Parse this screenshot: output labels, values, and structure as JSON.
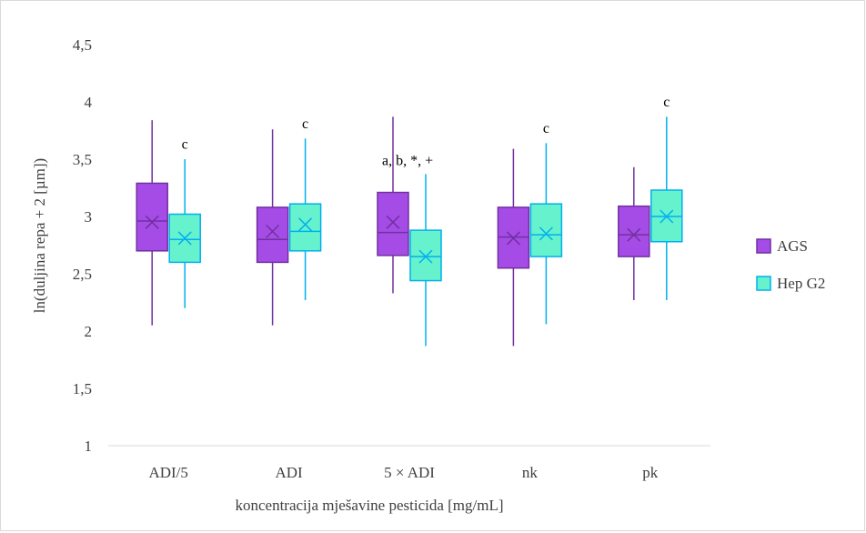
{
  "chart_data": {
    "type": "box",
    "xlabel": "koncentracija mješavine pesticida [mg/mL]",
    "ylabel": "ln(duljina repa + 2 [µm])",
    "ylim": [
      1,
      4.5
    ],
    "yticks": [
      "1",
      "1,5",
      "2",
      "2,5",
      "3",
      "3,5",
      "4",
      "4,5"
    ],
    "ytick_values": [
      1,
      1.5,
      2,
      2.5,
      3,
      3.5,
      4,
      4.5
    ],
    "grid": false,
    "legend_position": "right",
    "categories": [
      "ADI/5",
      "ADI",
      "5 × ADI",
      "nk",
      "pk"
    ],
    "series": [
      {
        "name": "AGS",
        "fill": "#a64ce6",
        "stroke": "#7030a0",
        "boxes": [
          {
            "min": 2.05,
            "q1": 2.7,
            "median": 2.96,
            "q3": 3.29,
            "max": 3.84,
            "mean": 2.95
          },
          {
            "min": 2.05,
            "q1": 2.6,
            "median": 2.8,
            "q3": 3.08,
            "max": 3.76,
            "mean": 2.87
          },
          {
            "min": 2.33,
            "q1": 2.66,
            "median": 2.86,
            "q3": 3.21,
            "max": 3.87,
            "mean": 2.95
          },
          {
            "min": 1.87,
            "q1": 2.55,
            "median": 2.82,
            "q3": 3.08,
            "max": 3.59,
            "mean": 2.81
          },
          {
            "min": 2.27,
            "q1": 2.65,
            "median": 2.84,
            "q3": 3.09,
            "max": 3.43,
            "mean": 2.84
          }
        ]
      },
      {
        "name": "Hep G2",
        "fill": "#66f2cc",
        "stroke": "#00b0f0",
        "boxes": [
          {
            "min": 2.2,
            "q1": 2.6,
            "median": 2.8,
            "q3": 3.02,
            "max": 3.5,
            "mean": 2.81
          },
          {
            "min": 2.27,
            "q1": 2.7,
            "median": 2.87,
            "q3": 3.11,
            "max": 3.68,
            "mean": 2.93
          },
          {
            "min": 1.87,
            "q1": 2.44,
            "median": 2.65,
            "q3": 2.88,
            "max": 3.37,
            "mean": 2.65
          },
          {
            "min": 2.06,
            "q1": 2.65,
            "median": 2.84,
            "q3": 3.11,
            "max": 3.64,
            "mean": 2.85
          },
          {
            "min": 2.27,
            "q1": 2.78,
            "median": 3.0,
            "q3": 3.23,
            "max": 3.87,
            "mean": 3.0
          }
        ]
      }
    ],
    "annotations": [
      {
        "text": "c",
        "category": 0,
        "series": 1,
        "y": 3.59
      },
      {
        "text": "c",
        "category": 1,
        "series": 1,
        "y": 3.77
      },
      {
        "text": "a, b, *, +",
        "category": 2,
        "series": 0,
        "y": 3.45
      },
      {
        "text": "c",
        "category": 3,
        "series": 1,
        "y": 3.73
      },
      {
        "text": "c",
        "category": 4,
        "series": 1,
        "y": 3.96
      }
    ]
  }
}
